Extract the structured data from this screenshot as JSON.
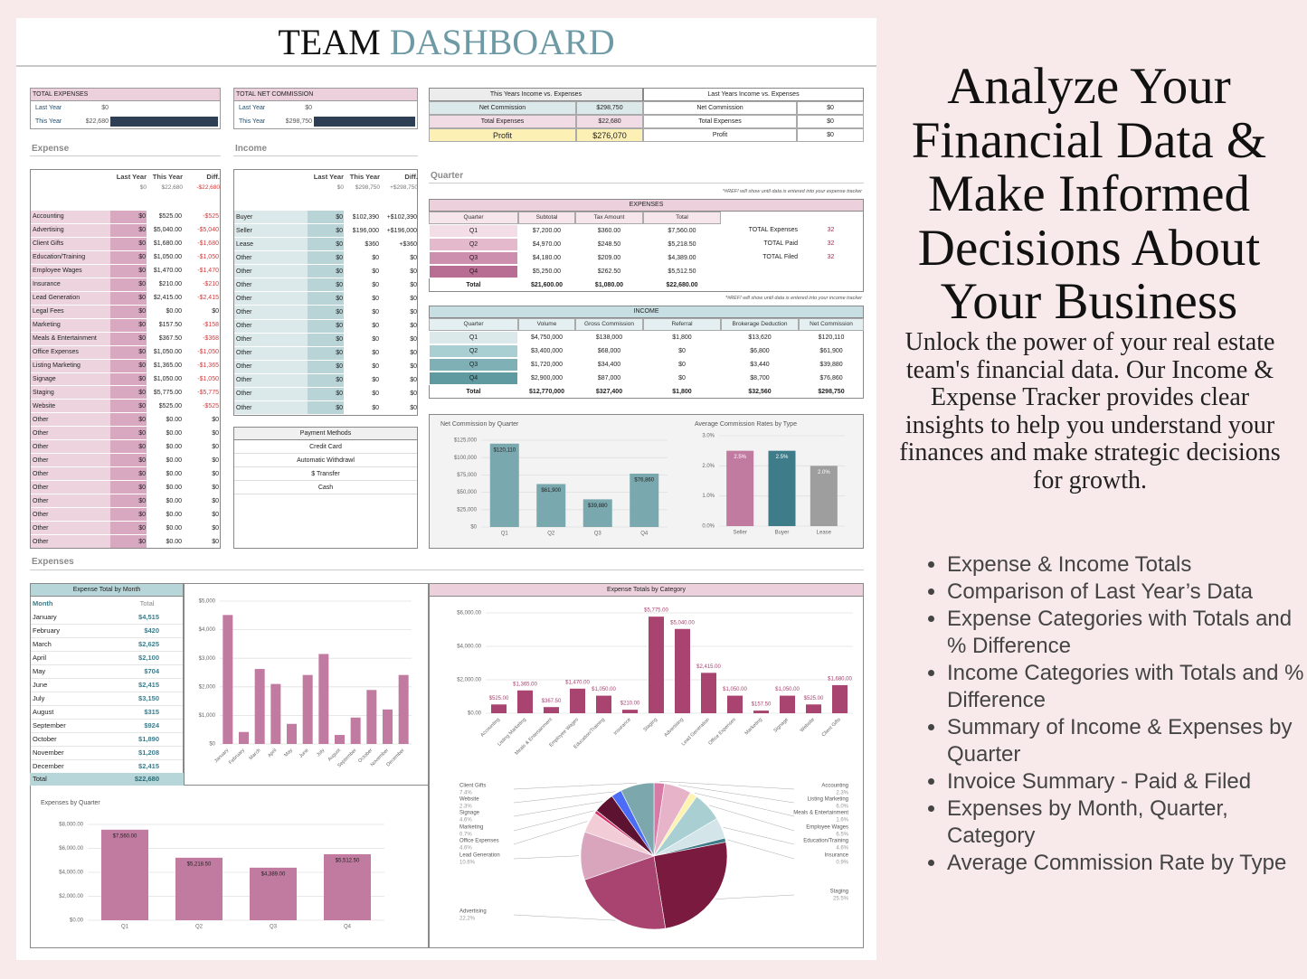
{
  "header": {
    "title_dark": "TEAM",
    "title_accent": "DASHBOARD"
  },
  "summary_boxes": [
    {
      "title": "TOTAL EXPENSES",
      "rows": [
        [
          "Last Year",
          "$0"
        ],
        [
          "This Year",
          "$22,680"
        ]
      ]
    },
    {
      "title": "TOTAL NET COMMISSION",
      "rows": [
        [
          "Last Year",
          "$0"
        ],
        [
          "This Year",
          "$298,750"
        ]
      ]
    }
  ],
  "comparison": [
    {
      "title": "This Years Income vs. Expenses",
      "rows": [
        [
          "Net Commission",
          "$298,750"
        ],
        [
          "Total Expenses",
          "$22,680"
        ],
        [
          "Profit",
          "$276,070"
        ]
      ]
    },
    {
      "title": "Last Years Income vs. Expenses",
      "rows": [
        [
          "Net Commission",
          "$0"
        ],
        [
          "Total Expenses",
          "$0"
        ],
        [
          "Profit",
          "$0"
        ]
      ]
    }
  ],
  "expense_table": {
    "section": "Expense",
    "columns": [
      "Last Year",
      "This Year",
      "Diff."
    ],
    "totals": [
      "$0",
      "$22,680",
      "-$22,680"
    ],
    "rows": [
      [
        "Accounting",
        "$0",
        "$525.00",
        "-$525"
      ],
      [
        "Advertising",
        "$0",
        "$5,040.00",
        "-$5,040"
      ],
      [
        "Client Gifts",
        "$0",
        "$1,680.00",
        "-$1,680"
      ],
      [
        "Education/Training",
        "$0",
        "$1,050.00",
        "-$1,050"
      ],
      [
        "Employee Wages",
        "$0",
        "$1,470.00",
        "-$1,470"
      ],
      [
        "Insurance",
        "$0",
        "$210.00",
        "-$210"
      ],
      [
        "Lead Generation",
        "$0",
        "$2,415.00",
        "-$2,415"
      ],
      [
        "Legal Fees",
        "$0",
        "$0.00",
        "$0"
      ],
      [
        "Marketing",
        "$0",
        "$157.50",
        "-$158"
      ],
      [
        "Meals & Entertainment",
        "$0",
        "$367.50",
        "-$368"
      ],
      [
        "Office Expenses",
        "$0",
        "$1,050.00",
        "-$1,050"
      ],
      [
        "Listing Marketing",
        "$0",
        "$1,365.00",
        "-$1,365"
      ],
      [
        "Signage",
        "$0",
        "$1,050.00",
        "-$1,050"
      ],
      [
        "Staging",
        "$0",
        "$5,775.00",
        "-$5,775"
      ],
      [
        "Website",
        "$0",
        "$525.00",
        "-$525"
      ],
      [
        "Other",
        "$0",
        "$0.00",
        "$0"
      ],
      [
        "Other",
        "$0",
        "$0.00",
        "$0"
      ],
      [
        "Other",
        "$0",
        "$0.00",
        "$0"
      ],
      [
        "Other",
        "$0",
        "$0.00",
        "$0"
      ],
      [
        "Other",
        "$0",
        "$0.00",
        "$0"
      ],
      [
        "Other",
        "$0",
        "$0.00",
        "$0"
      ],
      [
        "Other",
        "$0",
        "$0.00",
        "$0"
      ],
      [
        "Other",
        "$0",
        "$0.00",
        "$0"
      ],
      [
        "Other",
        "$0",
        "$0.00",
        "$0"
      ],
      [
        "Other",
        "$0",
        "$0.00",
        "$0"
      ]
    ]
  },
  "income_table": {
    "section": "Income",
    "columns": [
      "Last Year",
      "This Year",
      "Diff."
    ],
    "totals": [
      "$0",
      "$298,750",
      "+$298,750"
    ],
    "rows": [
      [
        "Buyer",
        "$0",
        "$102,390",
        "+$102,390"
      ],
      [
        "Seller",
        "$0",
        "$196,000",
        "+$196,000"
      ],
      [
        "Lease",
        "$0",
        "$360",
        "+$360"
      ],
      [
        "Other",
        "$0",
        "$0",
        "$0"
      ],
      [
        "Other",
        "$0",
        "$0",
        "$0"
      ],
      [
        "Other",
        "$0",
        "$0",
        "$0"
      ],
      [
        "Other",
        "$0",
        "$0",
        "$0"
      ],
      [
        "Other",
        "$0",
        "$0",
        "$0"
      ],
      [
        "Other",
        "$0",
        "$0",
        "$0"
      ],
      [
        "Other",
        "$0",
        "$0",
        "$0"
      ],
      [
        "Other",
        "$0",
        "$0",
        "$0"
      ],
      [
        "Other",
        "$0",
        "$0",
        "$0"
      ],
      [
        "Other",
        "$0",
        "$0",
        "$0"
      ],
      [
        "Other",
        "$0",
        "$0",
        "$0"
      ],
      [
        "Other",
        "$0",
        "$0",
        "$0"
      ]
    ]
  },
  "payment_methods": {
    "title": "Payment Methods",
    "items": [
      "Credit Card",
      "Automatic Withdrawl",
      "$ Transfer",
      "Cash"
    ]
  },
  "quarter": {
    "section": "Quarter",
    "expenses": {
      "note": "*#REF! will show until data is entered into your expense tracker",
      "title": "EXPENSES",
      "columns": [
        "Quarter",
        "Subtotal",
        "Tax Amount",
        "Total"
      ],
      "rows": [
        [
          "Q1",
          "$7,200.00",
          "$360.00",
          "$7,560.00"
        ],
        [
          "Q2",
          "$4,970.00",
          "$248.50",
          "$5,218.50"
        ],
        [
          "Q3",
          "$4,180.00",
          "$209.00",
          "$4,389.00"
        ],
        [
          "Q4",
          "$5,250.00",
          "$262.50",
          "$5,512.50"
        ],
        [
          "Total",
          "$21,600.00",
          "$1,080.00",
          "$22,680.00"
        ]
      ],
      "stats": [
        [
          "TOTAL Expenses",
          "32"
        ],
        [
          "TOTAL Paid",
          "32"
        ],
        [
          "TOTAL Filed",
          "32"
        ]
      ]
    },
    "income": {
      "note": "*#REF! will show until data is entered into your income tracker",
      "title": "INCOME",
      "columns": [
        "Quarter",
        "Volume",
        "Gross Commission",
        "Referral",
        "Brokerage Deduction",
        "Net Commission"
      ],
      "rows": [
        [
          "Q1",
          "$4,750,000",
          "$138,000",
          "$1,800",
          "$13,620",
          "$120,110"
        ],
        [
          "Q2",
          "$3,400,000",
          "$68,000",
          "$0",
          "$6,800",
          "$61,900"
        ],
        [
          "Q3",
          "$1,720,000",
          "$34,400",
          "$0",
          "$3,440",
          "$39,880"
        ],
        [
          "Q4",
          "$2,900,000",
          "$87,000",
          "$0",
          "$8,700",
          "$76,860"
        ],
        [
          "Total",
          "$12,770,000",
          "$327,400",
          "$1,800",
          "$32,560",
          "$298,750"
        ]
      ]
    }
  },
  "expenses_section": "Expenses",
  "month_table": {
    "title": "Expense Total by Month",
    "columns": [
      "Month",
      "Total"
    ],
    "rows": [
      [
        "January",
        "$4,515"
      ],
      [
        "February",
        "$420"
      ],
      [
        "March",
        "$2,625"
      ],
      [
        "April",
        "$2,100"
      ],
      [
        "May",
        "$704"
      ],
      [
        "June",
        "$2,415"
      ],
      [
        "July",
        "$3,150"
      ],
      [
        "August",
        "$315"
      ],
      [
        "September",
        "$924"
      ],
      [
        "October",
        "$1,890"
      ],
      [
        "November",
        "$1,208"
      ],
      [
        "December",
        "$2,415"
      ],
      [
        "Total",
        "$22,680"
      ]
    ]
  },
  "charts": {
    "net_commission": {
      "type": "bar",
      "title": "Net Commission by Quarter",
      "categories": [
        "Q1",
        "Q2",
        "Q3",
        "Q4"
      ],
      "values": [
        120110,
        61900,
        39880,
        76860
      ],
      "value_labels": [
        "$120,110",
        "$61,900",
        "$39,880",
        "$76,860"
      ],
      "color": "#79a8ae",
      "ylim": [
        0,
        125000
      ],
      "grid": true,
      "yticks": [
        {
          "value": 0,
          "label": "$0"
        },
        {
          "value": 25000,
          "label": "$25,000"
        },
        {
          "value": 50000,
          "label": "$50,000"
        },
        {
          "value": 75000,
          "label": "$75,000"
        },
        {
          "value": 100000,
          "label": "$100,000"
        },
        {
          "value": 125000,
          "label": "$125,000"
        }
      ]
    },
    "commission_rates": {
      "type": "bar",
      "title": "Average Commission Rates by Type",
      "categories": [
        "Seller",
        "Buyer",
        "Lease"
      ],
      "values": [
        2.5,
        2.5,
        2.0
      ],
      "value_labels": [
        "2.5%",
        "2.5%",
        "2.0%"
      ],
      "colors": [
        "#c27ba0",
        "#3f7c8a",
        "#9e9e9e"
      ],
      "ylim": [
        0,
        3
      ],
      "grid": true,
      "yticks": [
        {
          "value": 0,
          "label": "0.0%"
        },
        {
          "value": 1,
          "label": "1.0%"
        },
        {
          "value": 2,
          "label": "2.0%"
        },
        {
          "value": 3,
          "label": "3.0%"
        }
      ]
    },
    "expense_month": {
      "type": "bar",
      "categories": [
        "January",
        "February",
        "March",
        "April",
        "May",
        "June",
        "July",
        "August",
        "September",
        "October",
        "November",
        "December"
      ],
      "values": [
        4515,
        420,
        2625,
        2100,
        704,
        2415,
        3150,
        315,
        924,
        1890,
        1208,
        2415
      ],
      "color": "#c27ba0",
      "ylim": [
        0,
        5000
      ],
      "grid": true,
      "yticks": [
        {
          "value": 0,
          "label": "$0"
        },
        {
          "value": 1000,
          "label": "$1,000"
        },
        {
          "value": 2000,
          "label": "$2,000"
        },
        {
          "value": 3000,
          "label": "$3,000"
        },
        {
          "value": 4000,
          "label": "$4,000"
        },
        {
          "value": 5000,
          "label": "$5,000"
        }
      ]
    },
    "expense_quarter": {
      "type": "bar",
      "title": "Expenses by Quarter",
      "categories": [
        "Q1",
        "Q2",
        "Q3",
        "Q4"
      ],
      "values": [
        7560,
        5218.5,
        4389,
        5512.5
      ],
      "value_labels": [
        "$7,560.00",
        "$5,218.50",
        "$4,389.00",
        "$5,512.50"
      ],
      "color": "#c27ba0",
      "ylim": [
        0,
        8000
      ],
      "grid": true,
      "yticks": [
        {
          "value": 0,
          "label": "$0.00"
        },
        {
          "value": 2000,
          "label": "$2,000.00"
        },
        {
          "value": 4000,
          "label": "$4,000.00"
        },
        {
          "value": 6000,
          "label": "$6,000.00"
        },
        {
          "value": 8000,
          "label": "$8,000.00"
        }
      ]
    },
    "expense_category": {
      "type": "bar",
      "title": "Expense Totals by Category",
      "categories": [
        "Accounting",
        "Listing Marketing",
        "Meals & Entertainment",
        "Employee Wages",
        "Education/Training",
        "Insurance",
        "Staging",
        "Advertising",
        "Lead Generation",
        "Office Expenses",
        "Marketing",
        "Signage",
        "Website",
        "Client Gifts"
      ],
      "values": [
        525,
        1365,
        367.5,
        1470,
        1050,
        210,
        5775,
        5040,
        2415,
        1050,
        157.5,
        1050,
        525,
        1680
      ],
      "value_labels": [
        "$525.00",
        "$1,365.00",
        "$367.50",
        "$1,470.00",
        "$1,050.00",
        "$210.00",
        "$5,775.00",
        "$5,040.00",
        "$2,415.00",
        "$1,050.00",
        "$157.50",
        "$1,050.00",
        "$525.00",
        "$1,680.00"
      ],
      "color": "#a8446f",
      "ylim": [
        0,
        6000
      ],
      "grid": true,
      "yticks": [
        {
          "value": 0,
          "label": "$0.00"
        },
        {
          "value": 2000,
          "label": "$2,000.00"
        },
        {
          "value": 4000,
          "label": "$4,000.00"
        },
        {
          "value": 6000,
          "label": "$6,000.00"
        }
      ]
    },
    "expense_pie": {
      "type": "pie",
      "categories": [
        "Accounting",
        "Listing Marketing",
        "Meals & Entertainment",
        "Employee Wages",
        "Education/Training",
        "Insurance",
        "Staging",
        "Advertising",
        "Lead Generation",
        "Office Expenses",
        "Marketing",
        "Signage",
        "Website",
        "Client Gifts"
      ],
      "values": [
        2.3,
        6.0,
        1.6,
        6.5,
        4.6,
        0.9,
        25.5,
        22.2,
        10.6,
        4.6,
        0.7,
        4.6,
        2.3,
        7.4
      ],
      "value_labels": [
        "2.3%",
        "6.0%",
        "1.6%",
        "6.5%",
        "4.6%",
        "0.9%",
        "25.5%",
        "22.2%",
        "10.6%",
        "4.6%",
        "0.7%",
        "4.6%",
        "2.3%",
        "7.4%"
      ],
      "colors": [
        "#d87aa6",
        "#e6b3c9",
        "#fff3b0",
        "#a9cfd3",
        "#d3e5e8",
        "#3f7c8a",
        "#7a1a3f",
        "#a8446f",
        "#d9a5bd",
        "#f2cdd8",
        "#d6336c",
        "#5c1230",
        "#4a6cf7",
        "#7ba7ad"
      ]
    }
  },
  "promo": {
    "heading": "Analyze Your Financial Data & Make Informed Decisions About Your Business",
    "subheading": "Unlock the power of your real estate team's financial data. Our Income & Expense Tracker provides clear insights to help you understand your finances and make strategic decisions for growth.",
    "bullets": [
      "Expense & Income Totals",
      "Comparison of Last Year’s Data",
      "Expense Categories with Totals and % Difference",
      "Income Categories with Totals and % Difference",
      "Summary of Income & Expenses by Quarter",
      "Invoice Summary - Paid & Filed",
      "Expenses by Month, Quarter, Category",
      "Average Commission Rate by Type"
    ]
  }
}
